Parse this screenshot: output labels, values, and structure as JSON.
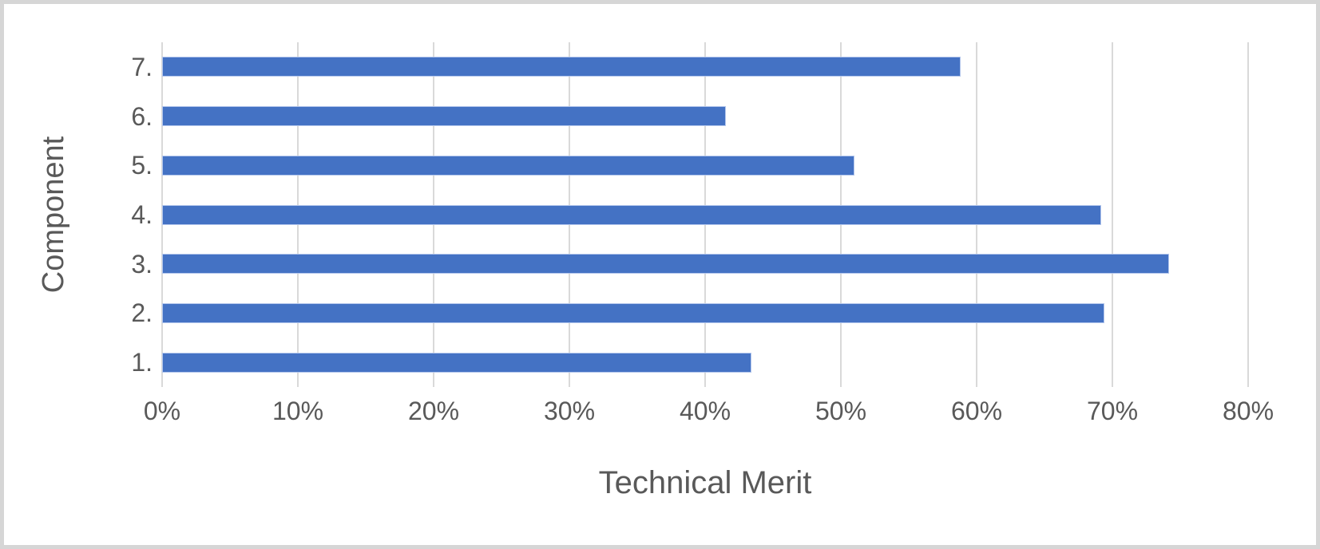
{
  "chart_data": {
    "type": "bar",
    "orientation": "horizontal",
    "categories": [
      "7.",
      "6.",
      "5.",
      "4.",
      "3.",
      "2.",
      "1."
    ],
    "values": [
      58.8,
      41.5,
      51.0,
      69.2,
      74.2,
      69.4,
      43.4
    ],
    "xlabel": "Technical Merit",
    "ylabel": "Component",
    "x_ticks": [
      "0%",
      "10%",
      "20%",
      "30%",
      "40%",
      "50%",
      "60%",
      "70%",
      "80%"
    ],
    "xlim": [
      0,
      80
    ],
    "grid": "vertical major gridlines on",
    "legend": "none",
    "colors": {
      "bar_fill": "#4472C4",
      "bar_border": "#B3C6EC",
      "gridline": "#D9D9D9",
      "axis_text": "#595959",
      "frame_border": "#D6D6D6",
      "background": "#FFFFFF"
    }
  }
}
